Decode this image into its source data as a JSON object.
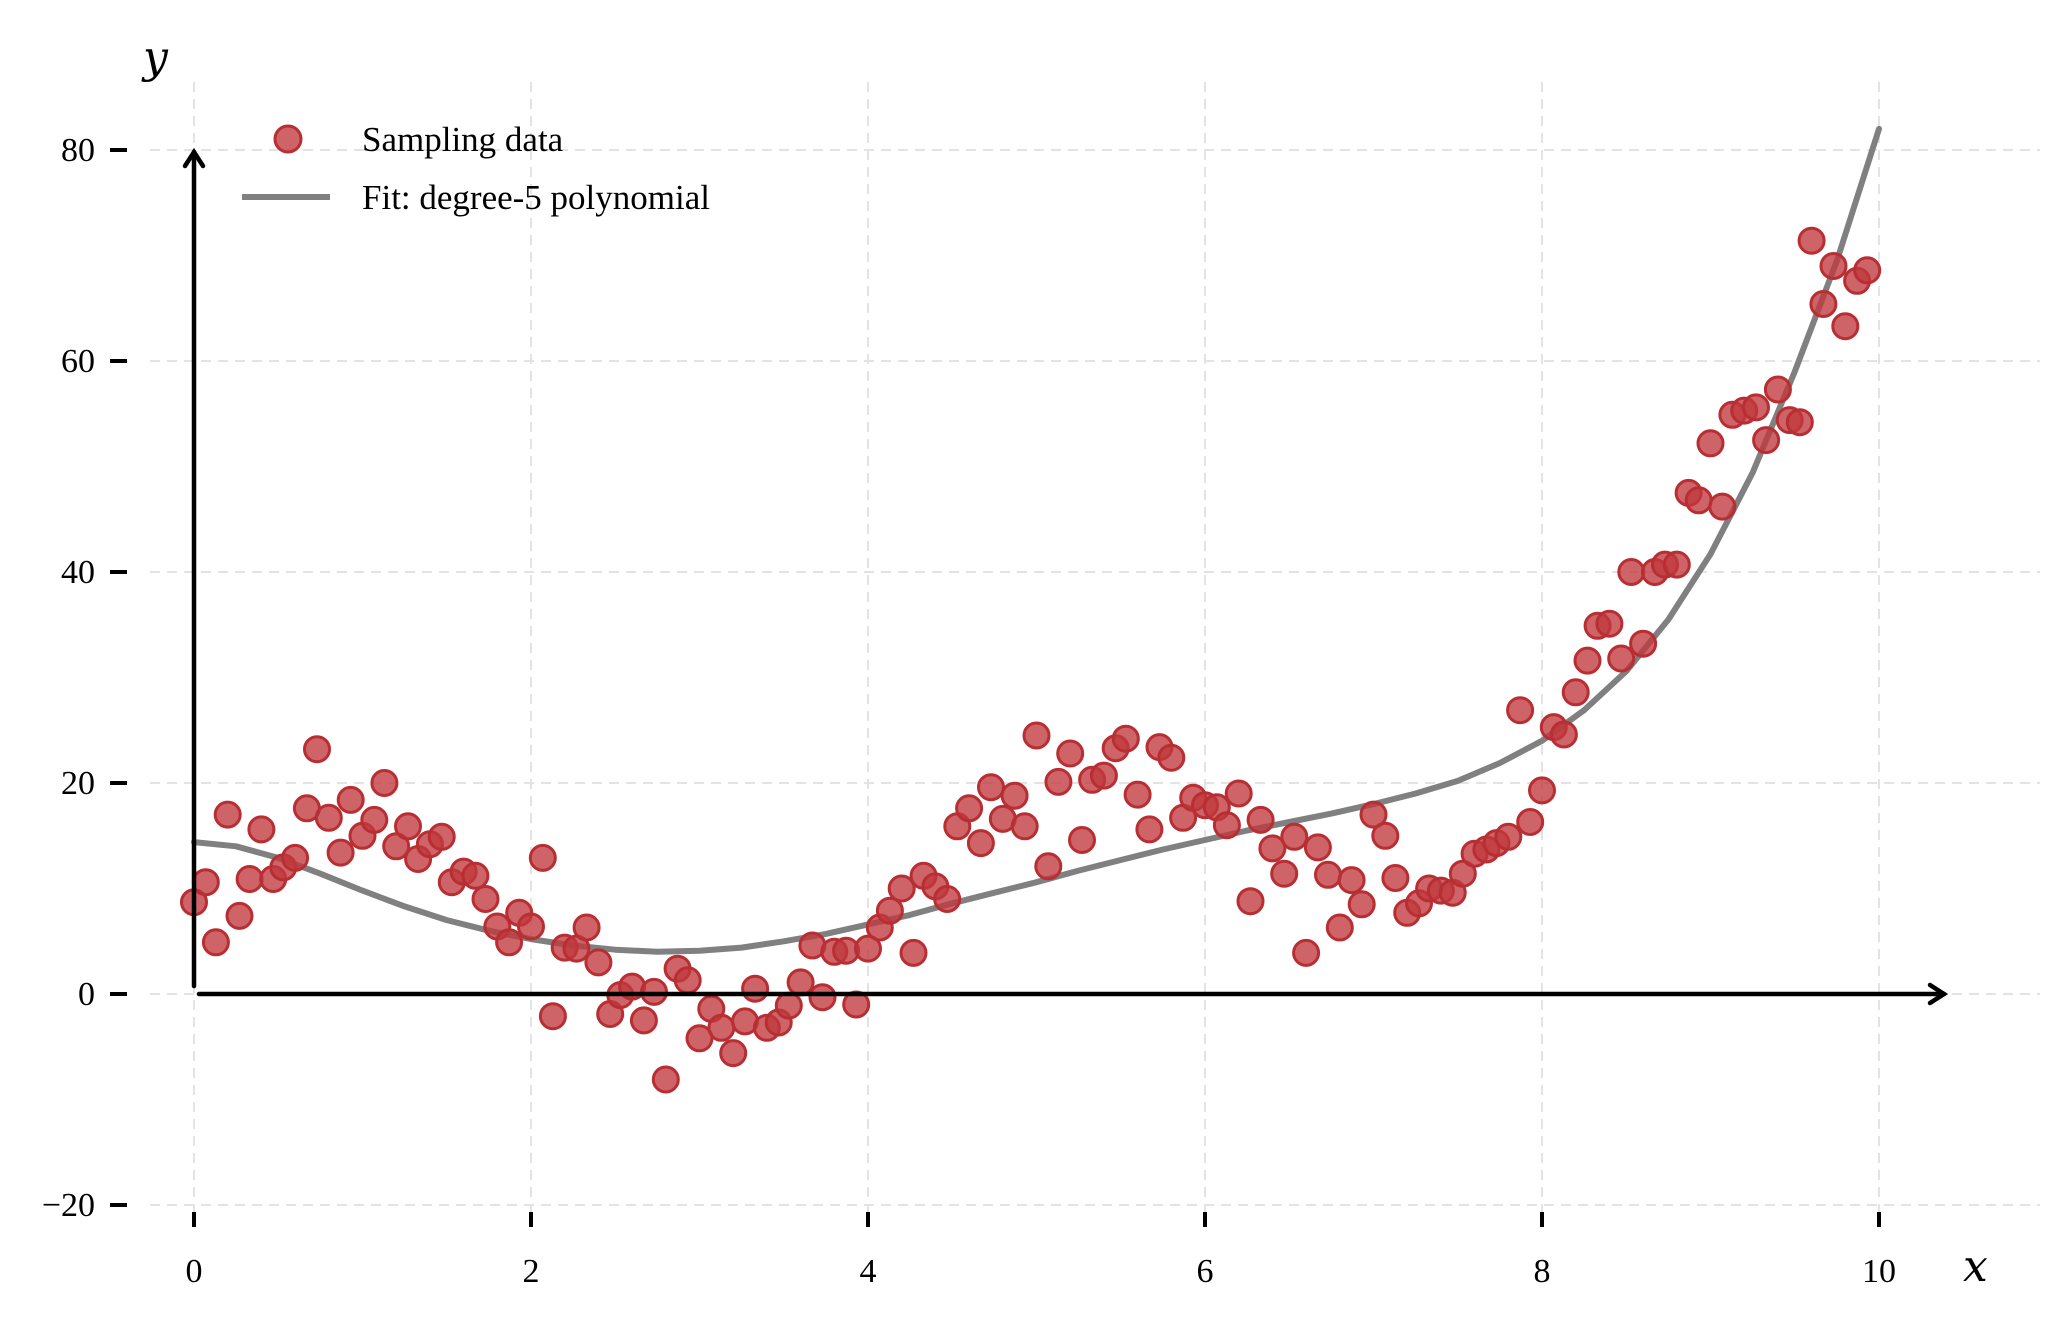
{
  "chart_data": {
    "type": "scatter",
    "xlabel": "x",
    "ylabel": "y",
    "xlim": [
      -0.35,
      11.05
    ],
    "ylim": [
      -21.5,
      86
    ],
    "xticks": [
      0,
      2,
      4,
      6,
      8,
      10
    ],
    "yticks": [
      -20,
      0,
      20,
      40,
      60,
      80
    ],
    "xtick_labels": [
      "0",
      "2",
      "4",
      "6",
      "8",
      "10"
    ],
    "ytick_labels": [
      "−20",
      "0",
      "20",
      "40",
      "60",
      "80"
    ],
    "grid": true,
    "legend_position": "top-left",
    "colors": {
      "points": "#c0393c",
      "fit": "#808080",
      "axes": "#000000",
      "grid": "#e3e3e3"
    },
    "series": [
      {
        "name": "Sampling data",
        "kind": "scatter",
        "points": [
          [
            0.0,
            8.7
          ],
          [
            0.07,
            10.6
          ],
          [
            0.13,
            4.9
          ],
          [
            0.2,
            17.0
          ],
          [
            0.27,
            7.4
          ],
          [
            0.33,
            10.9
          ],
          [
            0.4,
            15.6
          ],
          [
            0.47,
            10.9
          ],
          [
            0.53,
            12.0
          ],
          [
            0.6,
            12.9
          ],
          [
            0.67,
            17.6
          ],
          [
            0.73,
            23.2
          ],
          [
            0.8,
            16.7
          ],
          [
            0.87,
            13.4
          ],
          [
            0.93,
            18.4
          ],
          [
            1.0,
            15.0
          ],
          [
            1.07,
            16.5
          ],
          [
            1.13,
            20.0
          ],
          [
            1.2,
            14.0
          ],
          [
            1.27,
            15.9
          ],
          [
            1.33,
            12.8
          ],
          [
            1.4,
            14.2
          ],
          [
            1.47,
            14.9
          ],
          [
            1.53,
            10.6
          ],
          [
            1.6,
            11.6
          ],
          [
            1.67,
            11.2
          ],
          [
            1.73,
            9.0
          ],
          [
            1.8,
            6.4
          ],
          [
            1.87,
            4.9
          ],
          [
            1.93,
            7.7
          ],
          [
            2.0,
            6.4
          ],
          [
            2.07,
            12.9
          ],
          [
            2.13,
            -2.1
          ],
          [
            2.2,
            4.4
          ],
          [
            2.27,
            4.3
          ],
          [
            2.33,
            6.3
          ],
          [
            2.4,
            3.0
          ],
          [
            2.47,
            -1.9
          ],
          [
            2.53,
            -0.1
          ],
          [
            2.6,
            0.7
          ],
          [
            2.67,
            -2.5
          ],
          [
            2.73,
            0.2
          ],
          [
            2.8,
            -8.1
          ],
          [
            2.87,
            2.4
          ],
          [
            2.93,
            1.3
          ],
          [
            3.0,
            -4.2
          ],
          [
            3.07,
            -1.4
          ],
          [
            3.13,
            -3.2
          ],
          [
            3.2,
            -5.6
          ],
          [
            3.27,
            -2.6
          ],
          [
            3.33,
            0.5
          ],
          [
            3.4,
            -3.2
          ],
          [
            3.47,
            -2.7
          ],
          [
            3.53,
            -1.1
          ],
          [
            3.6,
            1.1
          ],
          [
            3.67,
            4.6
          ],
          [
            3.73,
            -0.3
          ],
          [
            3.8,
            4.0
          ],
          [
            3.87,
            4.1
          ],
          [
            3.93,
            -1.0
          ],
          [
            4.0,
            4.3
          ],
          [
            4.07,
            6.3
          ],
          [
            4.13,
            7.9
          ],
          [
            4.2,
            10.0
          ],
          [
            4.27,
            3.9
          ],
          [
            4.33,
            11.2
          ],
          [
            4.4,
            10.2
          ],
          [
            4.47,
            9.0
          ],
          [
            4.53,
            15.9
          ],
          [
            4.6,
            17.6
          ],
          [
            4.67,
            14.3
          ],
          [
            4.73,
            19.6
          ],
          [
            4.8,
            16.6
          ],
          [
            4.87,
            18.8
          ],
          [
            4.93,
            15.9
          ],
          [
            5.0,
            24.5
          ],
          [
            5.07,
            12.1
          ],
          [
            5.13,
            20.1
          ],
          [
            5.2,
            22.8
          ],
          [
            5.27,
            14.6
          ],
          [
            5.33,
            20.3
          ],
          [
            5.4,
            20.7
          ],
          [
            5.47,
            23.3
          ],
          [
            5.53,
            24.2
          ],
          [
            5.6,
            18.9
          ],
          [
            5.67,
            15.6
          ],
          [
            5.73,
            23.4
          ],
          [
            5.8,
            22.4
          ],
          [
            5.87,
            16.7
          ],
          [
            5.93,
            18.6
          ],
          [
            6.0,
            17.9
          ],
          [
            6.07,
            17.7
          ],
          [
            6.13,
            16.0
          ],
          [
            6.2,
            19.0
          ],
          [
            6.27,
            8.8
          ],
          [
            6.33,
            16.5
          ],
          [
            6.4,
            13.8
          ],
          [
            6.47,
            11.4
          ],
          [
            6.53,
            14.9
          ],
          [
            6.6,
            3.9
          ],
          [
            6.67,
            13.9
          ],
          [
            6.73,
            11.3
          ],
          [
            6.8,
            6.3
          ],
          [
            6.87,
            10.8
          ],
          [
            6.93,
            8.5
          ],
          [
            7.0,
            17.0
          ],
          [
            7.07,
            15.0
          ],
          [
            7.13,
            11.0
          ],
          [
            7.2,
            7.7
          ],
          [
            7.27,
            8.6
          ],
          [
            7.33,
            10.0
          ],
          [
            7.4,
            9.8
          ],
          [
            7.47,
            9.6
          ],
          [
            7.53,
            11.4
          ],
          [
            7.6,
            13.3
          ],
          [
            7.67,
            13.7
          ],
          [
            7.73,
            14.3
          ],
          [
            7.8,
            14.9
          ],
          [
            7.87,
            26.9
          ],
          [
            7.93,
            16.3
          ],
          [
            8.0,
            19.3
          ],
          [
            8.07,
            25.3
          ],
          [
            8.13,
            24.6
          ],
          [
            8.2,
            28.6
          ],
          [
            8.27,
            31.6
          ],
          [
            8.33,
            34.9
          ],
          [
            8.4,
            35.1
          ],
          [
            8.47,
            31.8
          ],
          [
            8.53,
            40.0
          ],
          [
            8.6,
            33.2
          ],
          [
            8.67,
            40.0
          ],
          [
            8.73,
            40.7
          ],
          [
            8.8,
            40.7
          ],
          [
            8.87,
            47.5
          ],
          [
            8.93,
            46.8
          ],
          [
            9.0,
            52.2
          ],
          [
            9.07,
            46.2
          ],
          [
            9.13,
            54.9
          ],
          [
            9.2,
            55.3
          ],
          [
            9.27,
            55.6
          ],
          [
            9.33,
            52.5
          ],
          [
            9.4,
            57.3
          ],
          [
            9.47,
            54.4
          ],
          [
            9.53,
            54.2
          ],
          [
            9.6,
            71.4
          ],
          [
            9.67,
            65.4
          ],
          [
            9.73,
            69.0
          ],
          [
            9.8,
            63.3
          ],
          [
            9.87,
            67.6
          ],
          [
            9.93,
            68.6
          ]
        ]
      },
      {
        "name": "Fit: degree-5 polynomial",
        "kind": "line",
        "points": [
          [
            0.0,
            14.4
          ],
          [
            0.25,
            14.0
          ],
          [
            0.5,
            12.9
          ],
          [
            0.75,
            11.4
          ],
          [
            1.0,
            9.8
          ],
          [
            1.25,
            8.3
          ],
          [
            1.5,
            7.0
          ],
          [
            1.75,
            6.0
          ],
          [
            2.0,
            5.2
          ],
          [
            2.25,
            4.6
          ],
          [
            2.5,
            4.2
          ],
          [
            2.75,
            4.0
          ],
          [
            3.0,
            4.1
          ],
          [
            3.25,
            4.4
          ],
          [
            3.5,
            5.0
          ],
          [
            3.75,
            5.7
          ],
          [
            4.0,
            6.6
          ],
          [
            4.25,
            7.5
          ],
          [
            4.5,
            8.6
          ],
          [
            4.75,
            9.6
          ],
          [
            5.0,
            10.6
          ],
          [
            5.25,
            11.7
          ],
          [
            5.5,
            12.7
          ],
          [
            5.75,
            13.7
          ],
          [
            6.0,
            14.6
          ],
          [
            6.25,
            15.5
          ],
          [
            6.5,
            16.3
          ],
          [
            6.75,
            17.1
          ],
          [
            7.0,
            18.0
          ],
          [
            7.25,
            19.0
          ],
          [
            7.5,
            20.2
          ],
          [
            7.75,
            21.9
          ],
          [
            8.0,
            24.0
          ],
          [
            8.25,
            26.9
          ],
          [
            8.5,
            30.6
          ],
          [
            8.75,
            35.5
          ],
          [
            9.0,
            41.7
          ],
          [
            9.25,
            49.4
          ],
          [
            9.5,
            59.0
          ],
          [
            9.75,
            69.5
          ],
          [
            10.0,
            82.0
          ]
        ]
      }
    ]
  }
}
